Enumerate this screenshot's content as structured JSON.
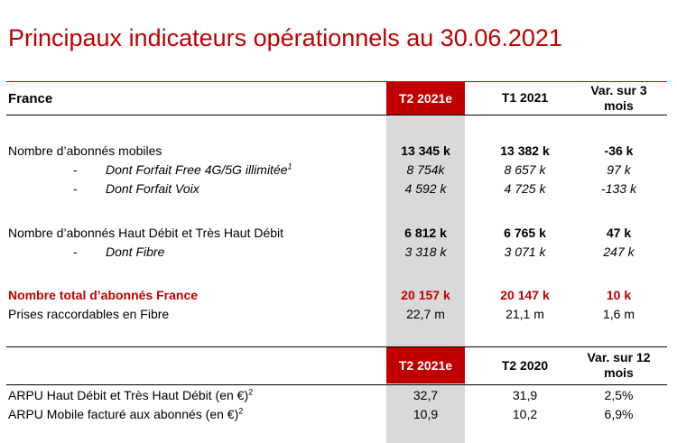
{
  "title": "Principaux indicateurs opérationnels au 30.06.2021",
  "header": {
    "label": "France",
    "col1": "T2 2021e",
    "col2": "T1 2021",
    "col3_line1": "Var. sur 3",
    "col3_line2": "mois"
  },
  "rows": [
    {
      "label": "Nombre d’abonnés mobiles",
      "v1": "13 345 k",
      "v2": "13 382 k",
      "v3": "-36 k"
    },
    {
      "dash": "-",
      "label": "Dont Forfait Free 4G/5G illimitée",
      "sup": "1",
      "v1": "8 754k",
      "v2": "8 657 k",
      "v3": "97 k"
    },
    {
      "dash": "-",
      "label": "Dont Forfait Voix",
      "v1": "4 592 k",
      "v2": "4 725 k",
      "v3": "-133 k"
    },
    {
      "label": "Nombre d’abonnés Haut Débit et Très Haut Débit",
      "v1": "6 812 k",
      "v2": "6 765 k",
      "v3": "47 k"
    },
    {
      "dash": "-",
      "label": "Dont Fibre",
      "v1": "3 318 k",
      "v2": "3 071 k",
      "v3": "247 k"
    },
    {
      "label": "Nombre total d’abonnés France",
      "v1": "20 157 k",
      "v2": "20 147 k",
      "v3": "10 k"
    },
    {
      "label": "Prises raccordables en Fibre",
      "v1": "22,7 m",
      "v2": "21,1 m",
      "v3": "1,6 m"
    }
  ],
  "header2": {
    "col1": "T2 2021e",
    "col2": "T2 2020",
    "col3_line1": "Var. sur 12",
    "col3_line2": "mois"
  },
  "arpu_rows": [
    {
      "label": "ARPU Haut Débit et Très Haut Débit (en €)",
      "sup": "2",
      "v1": "32,7",
      "v2": "31,9",
      "v3": "2,5%"
    },
    {
      "label": "ARPU Mobile facturé aux abonnés (en €)",
      "sup": "2",
      "v1": "10,9",
      "v2": "10,2",
      "v3": "6,9%"
    }
  ],
  "colors": {
    "accent": "#c00000",
    "column_shade": "#d9d9d9"
  }
}
